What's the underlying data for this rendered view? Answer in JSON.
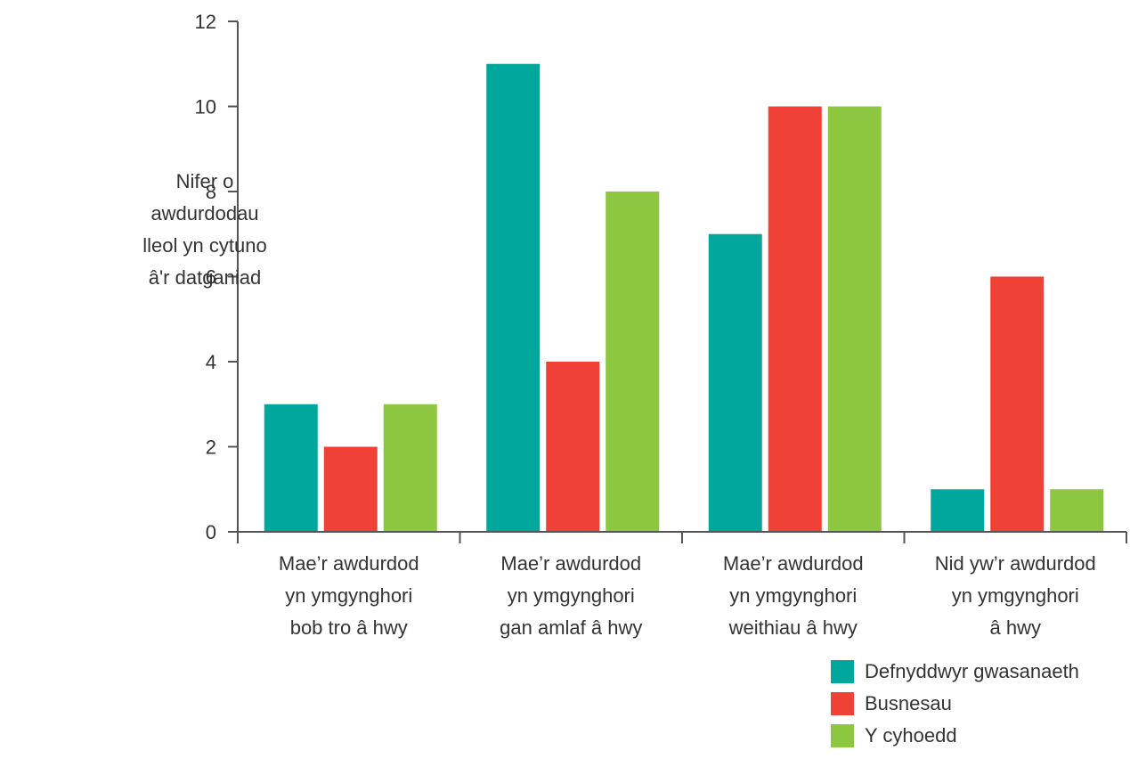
{
  "chart_data": {
    "type": "bar",
    "ylabel_lines": [
      "Nifer o",
      "awdurdodau",
      "lleol yn cytuno",
      "â'r datganiad"
    ],
    "ylim": [
      0,
      12
    ],
    "yticks": [
      0,
      2,
      4,
      6,
      8,
      10,
      12
    ],
    "categories": [
      [
        "Mae’r awdurdod",
        "yn ymgynghori",
        "bob tro â hwy"
      ],
      [
        "Mae’r awdurdod",
        "yn ymgynghori",
        "gan amlaf â hwy"
      ],
      [
        "Mae’r awdurdod",
        "yn ymgynghori",
        "weithiau â hwy"
      ],
      [
        "Nid yw’r awdurdod",
        "yn ymgynghori",
        "â hwy"
      ]
    ],
    "series": [
      {
        "name": "Defnyddwyr gwasanaeth",
        "color": "#00a79d",
        "values": [
          3,
          11,
          7,
          1
        ]
      },
      {
        "name": "Busnesau",
        "color": "#ef4136",
        "values": [
          2,
          4,
          10,
          6
        ]
      },
      {
        "name": "Y cyhoedd",
        "color": "#8dc63f",
        "values": [
          3,
          8,
          10,
          1
        ]
      }
    ],
    "grid": false,
    "legend_position": "bottom-right"
  },
  "colors": {
    "axis": "#555555",
    "text": "#333333"
  }
}
